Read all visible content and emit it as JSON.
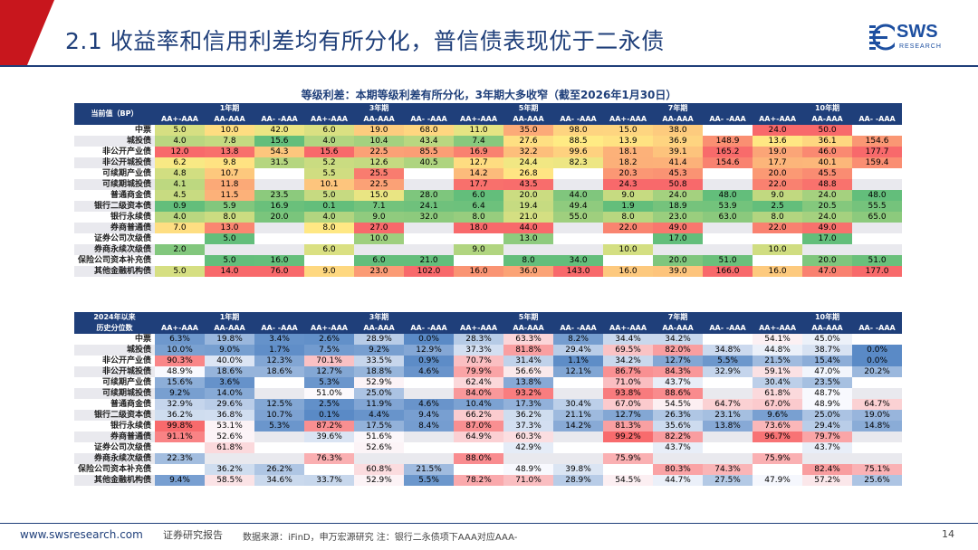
{
  "slide": {
    "title": "2.1 收益率和信用利差均有所分化，普信债表现优于二永债",
    "logo_text": "SWS",
    "logo_sub": "RESEARCH",
    "table_title": "等级利差：本期等级利差有所分化，3年期大多收窄（截至2026年1月30日）",
    "footer_url": "www.swsresearch.com",
    "footer_report": "证券研究报告",
    "footer_source": "数据来源：iFinD，申万宏源研究  注：银行二永债项下AAA对应AAA-",
    "page_number": "14"
  },
  "colors": {
    "brand_blue": "#1f3f7a",
    "brand_red": "#c8161d"
  },
  "periods": [
    "1年期",
    "3年期",
    "5年期",
    "7年期",
    "10年期"
  ],
  "cols": [
    "AA+-AAA",
    "AA-AAA",
    "AA- -AAA"
  ],
  "rows": [
    "中票",
    "城投债",
    "非公开产业债",
    "非公开城投债",
    "可续期产业债",
    "可续期城投债",
    "普通商金债",
    "银行二级资本债",
    "银行永续债",
    "券商普通债",
    "证券公司次级债",
    "券商永续次级债",
    "保险公司资本补充债",
    "其他金融机构债"
  ],
  "table1": {
    "header_label": "当前值（BP）",
    "values": [
      [
        "5.0",
        "10.0",
        "42.0",
        "6.0",
        "19.0",
        "68.0",
        "11.0",
        "35.0",
        "98.0",
        "15.0",
        "38.0",
        "",
        "24.0",
        "50.0",
        ""
      ],
      [
        "4.0",
        "7.8",
        "15.6",
        "4.0",
        "10.4",
        "43.4",
        "7.4",
        "27.6",
        "88.5",
        "13.9",
        "36.9",
        "148.9",
        "13.6",
        "36.1",
        "154.6"
      ],
      [
        "12.0",
        "13.8",
        "54.3",
        "15.6",
        "22.5",
        "85.5",
        "16.9",
        "32.2",
        "99.6",
        "18.1",
        "39.1",
        "165.2",
        "19.0",
        "46.0",
        "177.7"
      ],
      [
        "6.2",
        "9.8",
        "31.5",
        "5.2",
        "12.6",
        "40.5",
        "12.7",
        "24.4",
        "82.3",
        "18.2",
        "41.4",
        "154.6",
        "17.7",
        "40.1",
        "159.4"
      ],
      [
        "4.8",
        "10.7",
        "",
        "5.5",
        "25.5",
        "",
        "14.2",
        "26.8",
        "",
        "20.3",
        "45.3",
        "",
        "20.0",
        "45.5",
        ""
      ],
      [
        "4.1",
        "11.8",
        "",
        "10.1",
        "22.5",
        "",
        "17.7",
        "43.5",
        "",
        "24.3",
        "50.8",
        "",
        "22.0",
        "48.8",
        ""
      ],
      [
        "4.5",
        "11.5",
        "23.5",
        "5.0",
        "15.0",
        "28.0",
        "6.0",
        "20.0",
        "44.0",
        "9.0",
        "24.0",
        "48.0",
        "9.0",
        "24.0",
        "48.0"
      ],
      [
        "0.9",
        "5.9",
        "16.9",
        "0.1",
        "7.1",
        "24.1",
        "6.4",
        "19.4",
        "49.4",
        "1.9",
        "18.9",
        "53.9",
        "2.5",
        "20.5",
        "55.5"
      ],
      [
        "4.0",
        "8.0",
        "20.0",
        "4.0",
        "9.0",
        "32.0",
        "8.0",
        "21.0",
        "55.0",
        "8.0",
        "23.0",
        "63.0",
        "8.0",
        "24.0",
        "65.0"
      ],
      [
        "7.0",
        "13.0",
        "",
        "8.0",
        "27.0",
        "",
        "18.0",
        "44.0",
        "",
        "22.0",
        "49.0",
        "",
        "22.0",
        "49.0",
        ""
      ],
      [
        "",
        "5.0",
        "",
        "",
        "10.0",
        "",
        "",
        "13.0",
        "",
        "",
        "17.0",
        "",
        "",
        "17.0",
        ""
      ],
      [
        "2.0",
        "",
        "",
        "6.0",
        "",
        "",
        "9.0",
        "",
        "",
        "10.0",
        "",
        "",
        "10.0",
        "",
        ""
      ],
      [
        "",
        "5.0",
        "16.0",
        "",
        "6.0",
        "21.0",
        "",
        "8.0",
        "34.0",
        "",
        "20.0",
        "51.0",
        "",
        "20.0",
        "51.0"
      ],
      [
        "5.0",
        "14.0",
        "76.0",
        "9.0",
        "23.0",
        "102.0",
        "16.0",
        "36.0",
        "143.0",
        "16.0",
        "39.0",
        "166.0",
        "16.0",
        "47.0",
        "177.0"
      ]
    ]
  },
  "table2": {
    "header_label_1": "2024年以来",
    "header_label_2": "历史分位数",
    "values": [
      [
        "6.3%",
        "19.8%",
        "3.4%",
        "2.6%",
        "28.9%",
        "0.0%",
        "28.3%",
        "63.3%",
        "8.2%",
        "34.4%",
        "34.2%",
        "",
        "54.1%",
        "45.0%",
        ""
      ],
      [
        "10.0%",
        "9.0%",
        "1.7%",
        "7.5%",
        "9.2%",
        "12.9%",
        "37.3%",
        "81.8%",
        "29.4%",
        "69.5%",
        "82.0%",
        "34.8%",
        "44.8%",
        "38.7%",
        "0.0%"
      ],
      [
        "90.3%",
        "40.0%",
        "12.3%",
        "70.1%",
        "33.5%",
        "0.9%",
        "70.7%",
        "31.4%",
        "1.1%",
        "34.2%",
        "12.7%",
        "5.5%",
        "21.5%",
        "15.4%",
        "0.0%"
      ],
      [
        "48.9%",
        "18.6%",
        "18.6%",
        "12.7%",
        "18.8%",
        "4.6%",
        "79.9%",
        "56.6%",
        "12.1%",
        "86.7%",
        "84.3%",
        "32.9%",
        "59.1%",
        "47.0%",
        "20.2%"
      ],
      [
        "15.6%",
        "3.6%",
        "",
        "5.3%",
        "52.9%",
        "",
        "62.4%",
        "13.8%",
        "",
        "71.0%",
        "43.7%",
        "",
        "30.4%",
        "23.5%",
        ""
      ],
      [
        "9.2%",
        "14.0%",
        "",
        "51.0%",
        "25.0%",
        "",
        "84.0%",
        "93.2%",
        "",
        "93.8%",
        "88.6%",
        "",
        "61.8%",
        "48.7%",
        ""
      ],
      [
        "32.9%",
        "29.6%",
        "12.5%",
        "2.5%",
        "11.9%",
        "4.6%",
        "10.4%",
        "17.3%",
        "30.4%",
        "67.0%",
        "54.5%",
        "64.7%",
        "67.0%",
        "48.9%",
        "64.7%"
      ],
      [
        "36.2%",
        "36.8%",
        "10.7%",
        "0.1%",
        "4.4%",
        "9.4%",
        "66.2%",
        "36.2%",
        "21.1%",
        "12.7%",
        "26.3%",
        "23.1%",
        "9.6%",
        "25.0%",
        "19.0%"
      ],
      [
        "99.8%",
        "53.1%",
        "5.3%",
        "87.2%",
        "17.5%",
        "8.4%",
        "87.0%",
        "37.3%",
        "14.2%",
        "81.3%",
        "35.6%",
        "13.8%",
        "73.6%",
        "29.4%",
        "14.8%"
      ],
      [
        "91.1%",
        "52.6%",
        "",
        "39.6%",
        "51.6%",
        "",
        "64.9%",
        "60.3%",
        "",
        "99.2%",
        "82.2%",
        "",
        "96.7%",
        "79.7%",
        ""
      ],
      [
        "",
        "61.8%",
        "",
        "",
        "52.6%",
        "",
        "",
        "42.9%",
        "",
        "",
        "43.7%",
        "",
        "",
        "43.7%",
        ""
      ],
      [
        "22.3%",
        "",
        "",
        "76.3%",
        "",
        "",
        "88.0%",
        "",
        "",
        "75.9%",
        "",
        "",
        "75.9%",
        "",
        ""
      ],
      [
        "",
        "36.2%",
        "26.2%",
        "",
        "60.8%",
        "21.5%",
        "",
        "48.9%",
        "39.8%",
        "",
        "80.3%",
        "74.3%",
        "",
        "82.4%",
        "75.1%"
      ],
      [
        "9.4%",
        "58.5%",
        "34.6%",
        "33.7%",
        "52.9%",
        "5.5%",
        "78.2%",
        "71.0%",
        "28.9%",
        "54.5%",
        "44.7%",
        "27.5%",
        "47.9%",
        "57.2%",
        "25.6%"
      ]
    ]
  }
}
